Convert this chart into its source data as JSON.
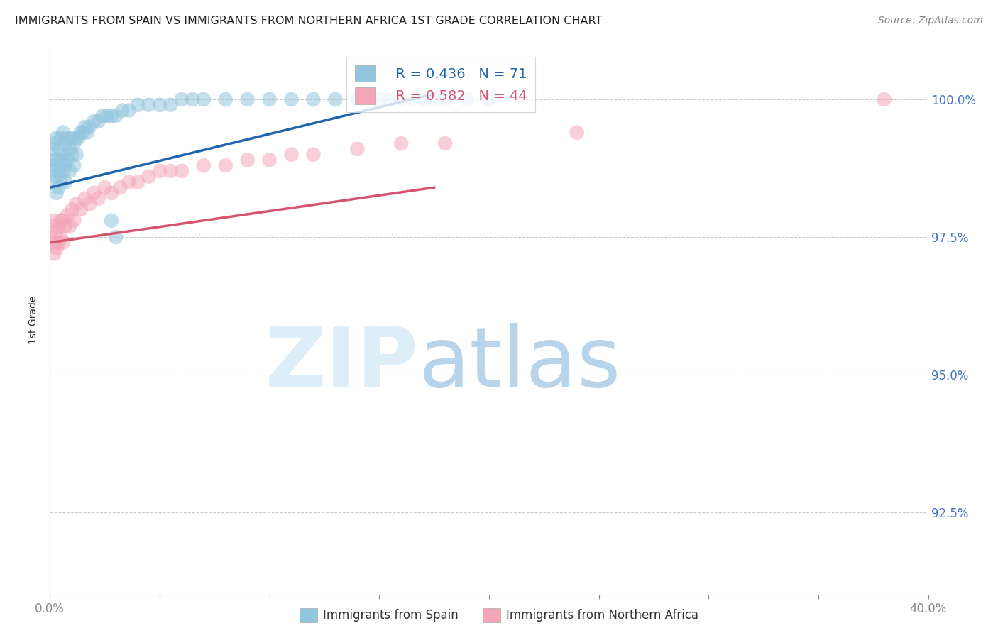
{
  "title": "IMMIGRANTS FROM SPAIN VS IMMIGRANTS FROM NORTHERN AFRICA 1ST GRADE CORRELATION CHART",
  "source": "Source: ZipAtlas.com",
  "ylabel": "1st Grade",
  "ytick_labels": [
    "100.0%",
    "97.5%",
    "95.0%",
    "92.5%"
  ],
  "ytick_values": [
    1.0,
    0.975,
    0.95,
    0.925
  ],
  "legend_blue": {
    "R": "0.436",
    "N": "71",
    "label": "Immigrants from Spain"
  },
  "legend_pink": {
    "R": "0.582",
    "N": "44",
    "label": "Immigrants from Northern Africa"
  },
  "blue_color": "#92c5de",
  "pink_color": "#f4a6b8",
  "blue_line_color": "#2166ac",
  "pink_line_color": "#d6546e",
  "xlim": [
    0.0,
    0.4
  ],
  "ylim": [
    0.91,
    1.01
  ],
  "background_color": "#ffffff",
  "grid_color": "#cccccc",
  "title_color": "#222222",
  "right_axis_color": "#4472c4",
  "spain_scatter": {
    "x": [
      0.0,
      0.001,
      0.001,
      0.002,
      0.002,
      0.002,
      0.003,
      0.003,
      0.003,
      0.003,
      0.004,
      0.004,
      0.004,
      0.005,
      0.005,
      0.005,
      0.006,
      0.006,
      0.006,
      0.007,
      0.007,
      0.007,
      0.008,
      0.008,
      0.009,
      0.009,
      0.01,
      0.01,
      0.011,
      0.011,
      0.012,
      0.012,
      0.013,
      0.014,
      0.015,
      0.016,
      0.017,
      0.018,
      0.02,
      0.022,
      0.024,
      0.026,
      0.028,
      0.03,
      0.033,
      0.036,
      0.04,
      0.045,
      0.05,
      0.055,
      0.06,
      0.065,
      0.07,
      0.08,
      0.09,
      0.1,
      0.11,
      0.12,
      0.13,
      0.14,
      0.15,
      0.155,
      0.16,
      0.165,
      0.17,
      0.175,
      0.18,
      0.19,
      0.2,
      0.03,
      0.028
    ],
    "y": [
      0.989,
      0.991,
      0.987,
      0.992,
      0.988,
      0.985,
      0.993,
      0.989,
      0.986,
      0.983,
      0.991,
      0.987,
      0.984,
      0.993,
      0.989,
      0.986,
      0.994,
      0.99,
      0.987,
      0.992,
      0.988,
      0.985,
      0.993,
      0.989,
      0.991,
      0.987,
      0.993,
      0.99,
      0.992,
      0.988,
      0.993,
      0.99,
      0.993,
      0.994,
      0.994,
      0.995,
      0.994,
      0.995,
      0.996,
      0.996,
      0.997,
      0.997,
      0.997,
      0.997,
      0.998,
      0.998,
      0.999,
      0.999,
      0.999,
      0.999,
      1.0,
      1.0,
      1.0,
      1.0,
      1.0,
      1.0,
      1.0,
      1.0,
      1.0,
      1.0,
      1.0,
      1.0,
      1.0,
      1.0,
      1.0,
      1.0,
      1.0,
      1.0,
      1.0,
      0.975,
      0.978
    ]
  },
  "africa_scatter": {
    "x": [
      0.0,
      0.001,
      0.001,
      0.002,
      0.002,
      0.003,
      0.003,
      0.004,
      0.004,
      0.005,
      0.005,
      0.006,
      0.006,
      0.007,
      0.008,
      0.009,
      0.01,
      0.011,
      0.012,
      0.014,
      0.016,
      0.018,
      0.02,
      0.022,
      0.025,
      0.028,
      0.032,
      0.036,
      0.04,
      0.045,
      0.05,
      0.055,
      0.06,
      0.07,
      0.08,
      0.09,
      0.1,
      0.11,
      0.12,
      0.14,
      0.16,
      0.18,
      0.24,
      0.38
    ],
    "y": [
      0.975,
      0.977,
      0.974,
      0.978,
      0.972,
      0.976,
      0.973,
      0.977,
      0.974,
      0.978,
      0.975,
      0.978,
      0.974,
      0.977,
      0.979,
      0.977,
      0.98,
      0.978,
      0.981,
      0.98,
      0.982,
      0.981,
      0.983,
      0.982,
      0.984,
      0.983,
      0.984,
      0.985,
      0.985,
      0.986,
      0.987,
      0.987,
      0.987,
      0.988,
      0.988,
      0.989,
      0.989,
      0.99,
      0.99,
      0.991,
      0.992,
      0.992,
      0.994,
      1.0
    ]
  },
  "blue_line": {
    "x0": 0.0,
    "x1": 0.175,
    "y0": 0.984,
    "y1": 1.001
  },
  "pink_line": {
    "x0": 0.0,
    "x1": 0.175,
    "y0": 0.974,
    "y1": 0.984
  }
}
